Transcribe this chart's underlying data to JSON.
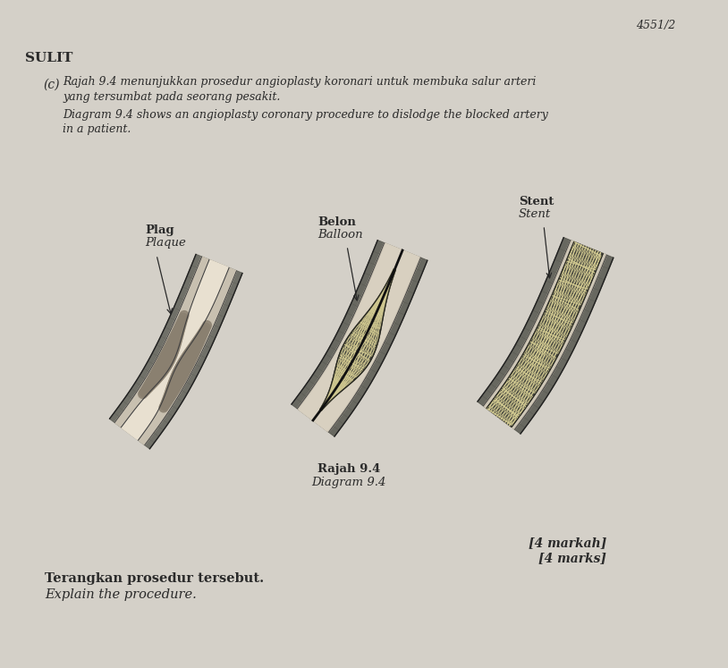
{
  "background_color": "#d4d0c8",
  "page_number": "4551/2",
  "sulit_text": "SULIT",
  "question_label": "(c)",
  "malay_line1": "Rajah 9.4 menunjukkan prosedur angioplasty koronari untuk membuka salur arteri",
  "malay_line2": "yang tersumbat pada seorang pesakit.",
  "english_line1": "Diagram 9.4 shows an angioplasty coronary procedure to dislodge the blocked artery",
  "english_line2": "in a patient.",
  "label1_malay": "Plag",
  "label1_english": "Plaque",
  "label2_malay": "Belon",
  "label2_english": "Balloon",
  "label3_malay": "Stent",
  "label3_english": "Stent",
  "diagram_label_malay": "Rajah 9.4",
  "diagram_label_english": "Diagram 9.4",
  "question_malay": "Terangkan prosedur tersebut.",
  "question_english": "Explain the procedure.",
  "marks_malay": "[4 markah]",
  "marks_english": "[4 marks]",
  "text_color": "#2a2a2a"
}
